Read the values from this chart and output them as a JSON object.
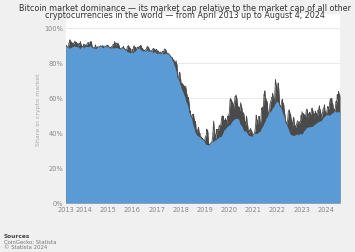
{
  "title_line1": "Bitcoin market dominance — its market cap relative to the market cap of all other",
  "title_line2": "cryptocurrencies in the world — from April 2013 up to August 4, 2024",
  "ylabel": "Share in crypto market",
  "source_label": "Sources",
  "source_detail": "CoinGecko; Statista",
  "source_date": "© Statista 2024",
  "fill_color_blue": "#5b9bd5",
  "fill_color_blue_light": "#7fb3e0",
  "fill_color_dark": "#4a4a4a",
  "line_color": "#4a4a4a",
  "bg_color": "#f0f0f0",
  "plot_bg_color": "#ffffff",
  "title_fontsize": 5.8,
  "axis_fontsize": 4.8,
  "ylabel_fontsize": 4.5,
  "source_fontsize": 4.2
}
